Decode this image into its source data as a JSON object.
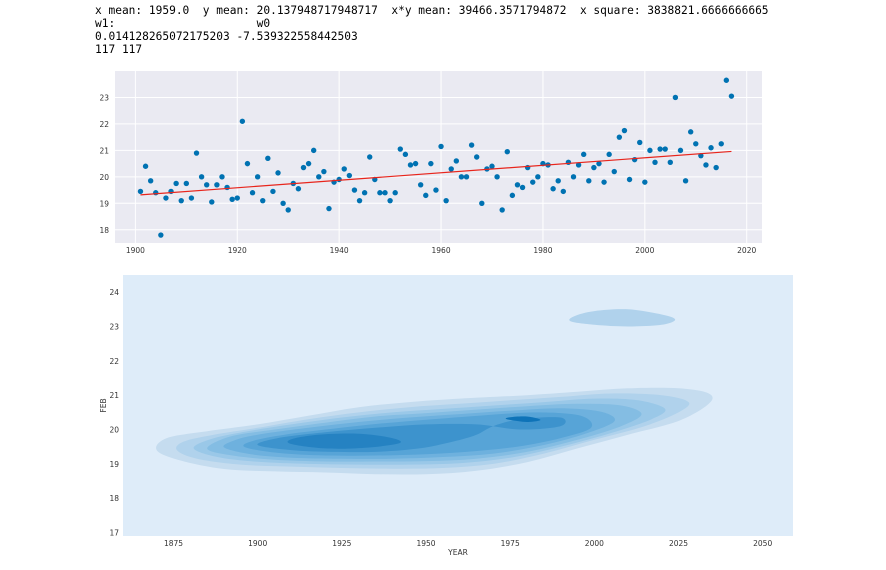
{
  "output": {
    "line1": "x mean: 1959.0  y mean: 20.137948717948717  x*y mean: 39466.3571794872  x square: 3838821.6666666665",
    "line2": "w1:                     w0",
    "line3": "0.014128265072175203 -7.539322558442503",
    "line4": "117 117"
  },
  "colors": {
    "point": "#0072b2",
    "fit": "#e8251c",
    "panel": "#eaeaf2",
    "kde_bg": "#deecf9",
    "kde_levels": [
      "#c5dcef",
      "#b0d2ec",
      "#9ac8e8",
      "#84bde3",
      "#6eb1de",
      "#57a4d7",
      "#3d93cd",
      "#2582c2",
      "#0e73b8"
    ]
  },
  "chart_data": [
    {
      "type": "scatter",
      "x": [
        1901,
        1902,
        1903,
        1904,
        1905,
        1906,
        1907,
        1908,
        1909,
        1910,
        1911,
        1912,
        1913,
        1914,
        1915,
        1916,
        1917,
        1918,
        1919,
        1920,
        1921,
        1922,
        1923,
        1924,
        1925,
        1926,
        1927,
        1928,
        1929,
        1930,
        1931,
        1932,
        1933,
        1934,
        1935,
        1936,
        1937,
        1938,
        1939,
        1940,
        1941,
        1942,
        1943,
        1944,
        1945,
        1946,
        1947,
        1948,
        1949,
        1950,
        1951,
        1952,
        1953,
        1954,
        1955,
        1956,
        1957,
        1958,
        1959,
        1960,
        1961,
        1962,
        1963,
        1964,
        1965,
        1966,
        1967,
        1968,
        1969,
        1970,
        1971,
        1972,
        1973,
        1974,
        1975,
        1976,
        1977,
        1978,
        1979,
        1980,
        1981,
        1982,
        1983,
        1984,
        1985,
        1986,
        1987,
        1988,
        1989,
        1990,
        1991,
        1992,
        1993,
        1994,
        1995,
        1996,
        1997,
        1998,
        1999,
        2000,
        2001,
        2002,
        2003,
        2004,
        2005,
        2006,
        2007,
        2008,
        2009,
        2010,
        2011,
        2012,
        2013,
        2014,
        2015,
        2016,
        2017
      ],
      "y": [
        19.45,
        20.4,
        19.85,
        19.4,
        17.8,
        19.2,
        19.45,
        19.75,
        19.1,
        19.75,
        19.2,
        20.9,
        20.0,
        19.7,
        19.05,
        19.7,
        20.0,
        19.6,
        19.15,
        19.2,
        22.1,
        20.5,
        19.4,
        20.0,
        19.1,
        20.7,
        19.45,
        20.15,
        19.0,
        18.75,
        19.75,
        19.55,
        20.35,
        20.5,
        21.0,
        20.0,
        20.2,
        18.8,
        19.8,
        19.9,
        20.3,
        20.05,
        19.5,
        19.1,
        19.4,
        20.75,
        19.9,
        19.4,
        19.4,
        19.1,
        19.4,
        21.05,
        20.85,
        20.45,
        20.5,
        19.7,
        19.3,
        20.5,
        19.5,
        21.15,
        19.1,
        20.3,
        20.6,
        20.0,
        20.0,
        21.2,
        20.75,
        19.0,
        20.3,
        20.4,
        20.0,
        18.75,
        20.95,
        19.3,
        19.7,
        19.6,
        20.35,
        19.8,
        20.0,
        20.5,
        20.45,
        19.55,
        19.85,
        19.45,
        20.55,
        20.0,
        20.45,
        20.85,
        19.85,
        20.35,
        20.5,
        19.8,
        20.85,
        20.2,
        21.5,
        21.75,
        19.9,
        20.65,
        21.3,
        19.8,
        21.0,
        20.55,
        21.05,
        21.05,
        20.55,
        23.0,
        21.0,
        19.85,
        21.7,
        21.25,
        20.8,
        20.45,
        21.1,
        20.35,
        21.25,
        23.65,
        23.05
      ],
      "fit": {
        "x": [
          1901,
          2017
        ],
        "y": [
          19.32,
          20.96
        ]
      },
      "xticks": [
        1900,
        1920,
        1940,
        1960,
        1980,
        2000,
        2020
      ],
      "yticks": [
        18,
        19,
        20,
        21,
        22,
        23
      ],
      "xlim": [
        1896,
        2023
      ],
      "ylim": [
        17.5,
        24.0
      ],
      "grid": true
    },
    {
      "type": "kde",
      "xlabel": "YEAR",
      "ylabel": "FEB",
      "xticks": [
        1875,
        1900,
        1925,
        1950,
        1975,
        2000,
        2025,
        2050
      ],
      "yticks": [
        17,
        18,
        19,
        20,
        21,
        22,
        23,
        24
      ],
      "xlim": [
        1860,
        2059
      ],
      "ylim": [
        16.9,
        24.5
      ],
      "levels": [
        [
          [
            1870,
            19.4
          ],
          [
            1877,
            19.1
          ],
          [
            1890,
            18.85
          ],
          [
            1905,
            18.78
          ],
          [
            1920,
            18.75
          ],
          [
            1935,
            18.7
          ],
          [
            1950,
            18.7
          ],
          [
            1965,
            18.8
          ],
          [
            1980,
            19.05
          ],
          [
            1995,
            19.45
          ],
          [
            2010,
            19.85
          ],
          [
            2025,
            20.25
          ],
          [
            2034,
            20.75
          ],
          [
            2034,
            21.05
          ],
          [
            2025,
            21.2
          ],
          [
            2010,
            21.2
          ],
          [
            1995,
            21.1
          ],
          [
            1980,
            21.0
          ],
          [
            1960,
            20.9
          ],
          [
            1945,
            20.8
          ],
          [
            1930,
            20.65
          ],
          [
            1915,
            20.4
          ],
          [
            1900,
            20.15
          ],
          [
            1885,
            19.95
          ],
          [
            1873,
            19.75
          ]
        ],
        [
          [
            1876,
            19.4
          ],
          [
            1882,
            19.15
          ],
          [
            1895,
            18.98
          ],
          [
            1910,
            18.92
          ],
          [
            1925,
            18.88
          ],
          [
            1940,
            18.86
          ],
          [
            1955,
            18.88
          ],
          [
            1970,
            19.0
          ],
          [
            1985,
            19.3
          ],
          [
            2000,
            19.7
          ],
          [
            2015,
            20.1
          ],
          [
            2025,
            20.5
          ],
          [
            2028,
            20.8
          ],
          [
            2020,
            21.0
          ],
          [
            2005,
            21.05
          ],
          [
            1990,
            20.95
          ],
          [
            1975,
            20.85
          ],
          [
            1960,
            20.75
          ],
          [
            1945,
            20.65
          ],
          [
            1930,
            20.5
          ],
          [
            1915,
            20.3
          ],
          [
            1900,
            20.05
          ],
          [
            1887,
            19.85
          ],
          [
            1878,
            19.65
          ]
        ],
        [
          [
            1881,
            19.45
          ],
          [
            1888,
            19.2
          ],
          [
            1900,
            19.06
          ],
          [
            1915,
            19.0
          ],
          [
            1930,
            18.98
          ],
          [
            1945,
            18.98
          ],
          [
            1960,
            19.02
          ],
          [
            1975,
            19.18
          ],
          [
            1990,
            19.5
          ],
          [
            2005,
            19.9
          ],
          [
            2017,
            20.3
          ],
          [
            2021,
            20.6
          ],
          [
            2013,
            20.85
          ],
          [
            2000,
            20.9
          ],
          [
            1985,
            20.8
          ],
          [
            1970,
            20.7
          ],
          [
            1955,
            20.6
          ],
          [
            1940,
            20.5
          ],
          [
            1925,
            20.35
          ],
          [
            1910,
            20.15
          ],
          [
            1897,
            19.95
          ],
          [
            1886,
            19.72
          ]
        ],
        [
          [
            1885,
            19.45
          ],
          [
            1892,
            19.25
          ],
          [
            1905,
            19.12
          ],
          [
            1920,
            19.07
          ],
          [
            1935,
            19.07
          ],
          [
            1950,
            19.08
          ],
          [
            1965,
            19.15
          ],
          [
            1980,
            19.35
          ],
          [
            1995,
            19.7
          ],
          [
            2008,
            20.1
          ],
          [
            2014,
            20.45
          ],
          [
            2008,
            20.7
          ],
          [
            1995,
            20.75
          ],
          [
            1980,
            20.68
          ],
          [
            1965,
            20.58
          ],
          [
            1950,
            20.48
          ],
          [
            1935,
            20.38
          ],
          [
            1920,
            20.2
          ],
          [
            1905,
            20.0
          ],
          [
            1892,
            19.8
          ]
        ],
        [
          [
            1890,
            19.48
          ],
          [
            1898,
            19.28
          ],
          [
            1910,
            19.18
          ],
          [
            1925,
            19.15
          ],
          [
            1940,
            19.15
          ],
          [
            1955,
            19.2
          ],
          [
            1970,
            19.3
          ],
          [
            1985,
            19.55
          ],
          [
            1998,
            19.9
          ],
          [
            2006,
            20.25
          ],
          [
            2002,
            20.52
          ],
          [
            1990,
            20.62
          ],
          [
            1975,
            20.55
          ],
          [
            1960,
            20.45
          ],
          [
            1945,
            20.35
          ],
          [
            1930,
            20.22
          ],
          [
            1915,
            20.05
          ],
          [
            1900,
            19.85
          ],
          [
            1893,
            19.68
          ]
        ],
        [
          [
            1896,
            19.5
          ],
          [
            1905,
            19.33
          ],
          [
            1918,
            19.25
          ],
          [
            1932,
            19.24
          ],
          [
            1947,
            19.27
          ],
          [
            1962,
            19.35
          ],
          [
            1977,
            19.5
          ],
          [
            1990,
            19.75
          ],
          [
            1999,
            20.05
          ],
          [
            1996,
            20.4
          ],
          [
            1983,
            20.5
          ],
          [
            1968,
            20.42
          ],
          [
            1952,
            20.3
          ],
          [
            1937,
            20.18
          ],
          [
            1922,
            20.02
          ],
          [
            1908,
            19.85
          ],
          [
            1899,
            19.68
          ]
        ],
        [
          [
            1900,
            19.55
          ],
          [
            1910,
            19.4
          ],
          [
            1922,
            19.35
          ],
          [
            1935,
            19.35
          ],
          [
            1948,
            19.45
          ],
          [
            1958,
            19.65
          ],
          [
            1965,
            19.85
          ],
          [
            1970,
            20.1
          ],
          [
            1978,
            20.3
          ],
          [
            1990,
            20.35
          ],
          [
            1990,
            20.1
          ],
          [
            1978,
            20.0
          ],
          [
            1965,
            20.15
          ],
          [
            1950,
            20.15
          ],
          [
            1935,
            20.05
          ],
          [
            1920,
            19.92
          ],
          [
            1906,
            19.75
          ]
        ],
        [
          [
            1910,
            19.58
          ],
          [
            1920,
            19.45
          ],
          [
            1932,
            19.47
          ],
          [
            1942,
            19.6
          ],
          [
            1940,
            19.75
          ],
          [
            1930,
            19.88
          ],
          [
            1918,
            19.85
          ],
          [
            1910,
            19.72
          ]
        ],
        [
          [
            1974,
            20.3
          ],
          [
            1980,
            20.22
          ],
          [
            1984,
            20.28
          ],
          [
            1980,
            20.38
          ],
          [
            1975,
            20.36
          ]
        ]
      ],
      "blob": [
        [
          1993,
          23.15
        ],
        [
          2000,
          23.05
        ],
        [
          2010,
          23.0
        ],
        [
          2020,
          23.05
        ],
        [
          2024,
          23.2
        ],
        [
          2020,
          23.35
        ],
        [
          2010,
          23.5
        ],
        [
          2000,
          23.45
        ],
        [
          1994,
          23.3
        ]
      ]
    }
  ]
}
